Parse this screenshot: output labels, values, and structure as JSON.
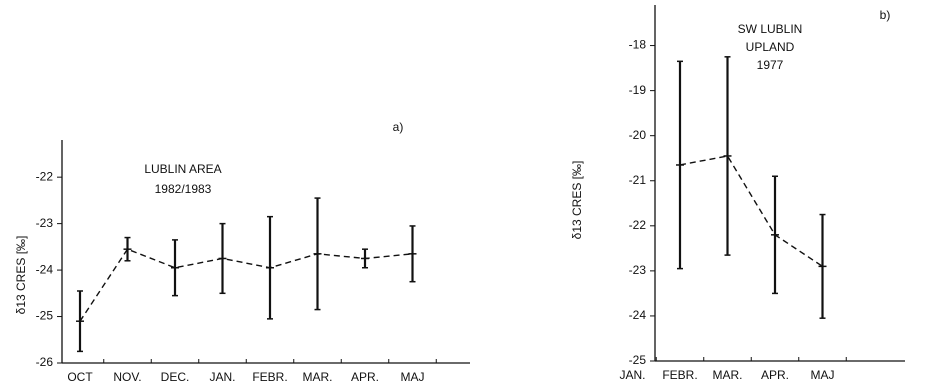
{
  "chart_data": [
    {
      "type": "line",
      "annotations": [
        "LUBLIN AREA",
        "1982/1983",
        "a)"
      ],
      "y_label": "δ13 CRES [‰]",
      "categories": [
        "OCT",
        "NOV.",
        "DEC.",
        "JAN.",
        "FEBR.",
        "MAR.",
        "APR.",
        "MAJ"
      ],
      "series": [
        {
          "color": "#111111",
          "values": [
            -25.1,
            -23.55,
            -23.95,
            -23.75,
            -23.95,
            -23.65,
            -23.75,
            -23.65
          ],
          "errors": [
            0.65,
            0.25,
            0.6,
            0.75,
            1.1,
            1.2,
            0.2,
            0.6
          ]
        }
      ],
      "ylim": [
        -26,
        -21.2
      ],
      "yticks": [
        -26,
        -25,
        -24,
        -23,
        -22
      ]
    },
    {
      "type": "line",
      "annotations": [
        "SW LUBLIN",
        "UPLAND",
        "1977",
        "b)"
      ],
      "y_label": "δ13 CRES [‰]",
      "categories": [
        "JAN.",
        "FEBR.",
        "MAR.",
        "APR.",
        "MAJ"
      ],
      "series": [
        {
          "color": "#111111",
          "values": [
            null,
            -20.65,
            -20.45,
            -22.2,
            -22.9
          ],
          "errors": [
            null,
            2.3,
            2.2,
            1.3,
            1.15
          ]
        }
      ],
      "ylim": [
        -25,
        -17.1
      ],
      "yticks": [
        -25,
        -24,
        -23,
        -22,
        -21,
        -20,
        -19,
        -18
      ]
    }
  ]
}
